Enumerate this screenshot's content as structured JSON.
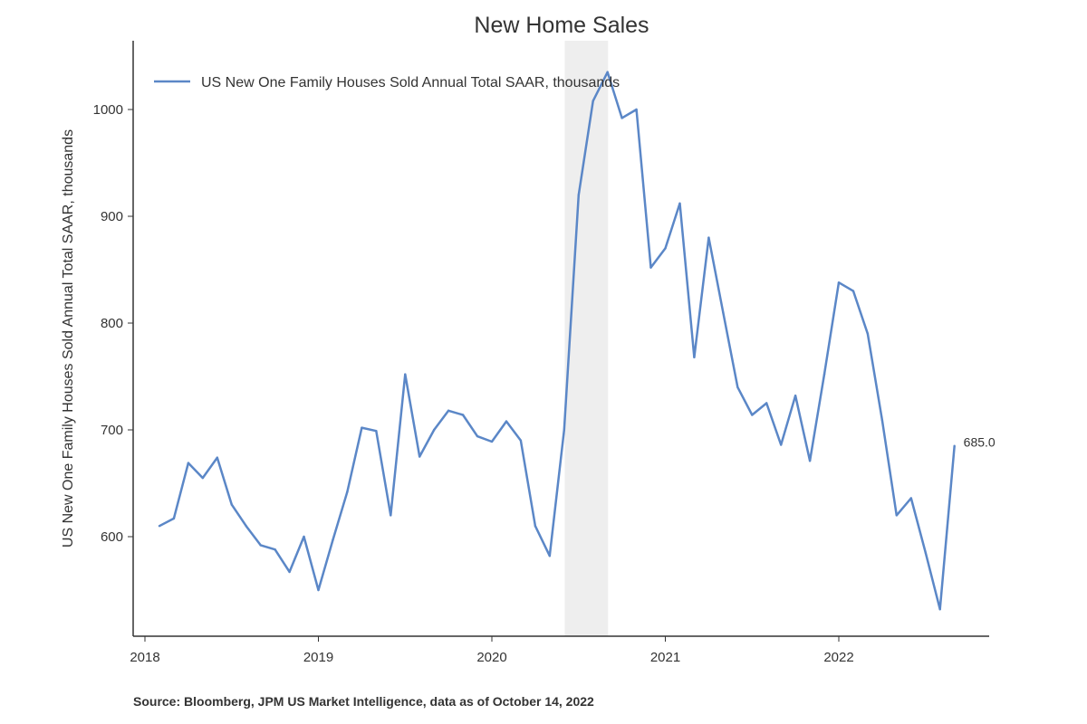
{
  "chart_data": {
    "type": "line",
    "title": "New Home Sales",
    "xlabel": "",
    "ylabel": "US New One Family Houses Sold Annual Total SAAR, thousands",
    "legend": {
      "entries": [
        "US New One Family Houses Sold Annual Total SAAR, thousands"
      ],
      "placement": "top-left"
    },
    "ylim": [
      510,
      1060
    ],
    "xlim": [
      2017.95,
      2022.9
    ],
    "yticks": [
      600,
      700,
      800,
      900,
      1000
    ],
    "xticks": [
      2018,
      2019,
      2020,
      2021,
      2022
    ],
    "grid": false,
    "start": {
      "year": 2018,
      "month": 2
    },
    "series": [
      {
        "name": "US New One Family Houses Sold Annual Total SAAR, thousands",
        "color": "#5b87c7",
        "values": [
          610,
          617,
          669,
          655,
          674,
          630,
          610,
          592,
          588,
          567,
          600,
          550,
          597,
          642,
          702,
          699,
          620,
          752,
          675,
          700,
          718,
          714,
          694,
          689,
          708,
          690,
          610,
          582,
          700,
          920,
          1008,
          1035,
          992,
          1000,
          852,
          870,
          912,
          768,
          880,
          810,
          740,
          714,
          725,
          686,
          732,
          671,
          752,
          838,
          830,
          790,
          709,
          620,
          636,
          585,
          532,
          685
        ]
      }
    ],
    "shaded_region": {
      "from": 2020.42,
      "to": 2020.67,
      "color": "#eeeeee"
    },
    "last_value_label": "685.0",
    "source": "Source: Bloomberg, JPM US Market Intelligence, data as of October 14, 2022"
  }
}
